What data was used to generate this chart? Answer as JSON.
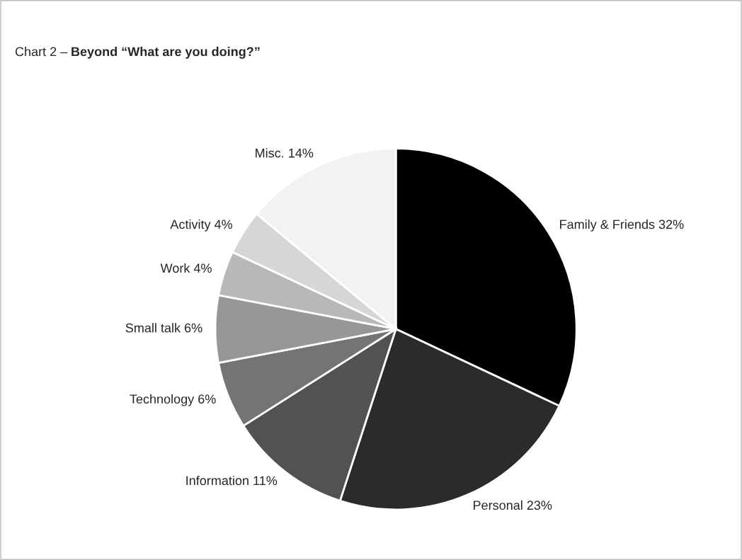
{
  "chart_data": {
    "type": "pie",
    "title": "Chart 2 –",
    "subtitle": "Beyond “What are you doing?”",
    "categories": [
      "Family & Friends",
      "Personal",
      "Information",
      "Technology",
      "Small talk",
      "Work",
      "Activity",
      "Misc."
    ],
    "values": [
      32,
      23,
      11,
      6,
      6,
      4,
      4,
      14
    ],
    "value_labels": [
      "32%",
      "23%",
      "11%",
      "6%",
      "6%",
      "4%",
      "4%",
      "14%"
    ],
    "colors": [
      "#000000",
      "#2b2b2b",
      "#525252",
      "#747474",
      "#979797",
      "#b8b8b8",
      "#d6d6d6",
      "#f2f2f2"
    ],
    "legend": false
  }
}
